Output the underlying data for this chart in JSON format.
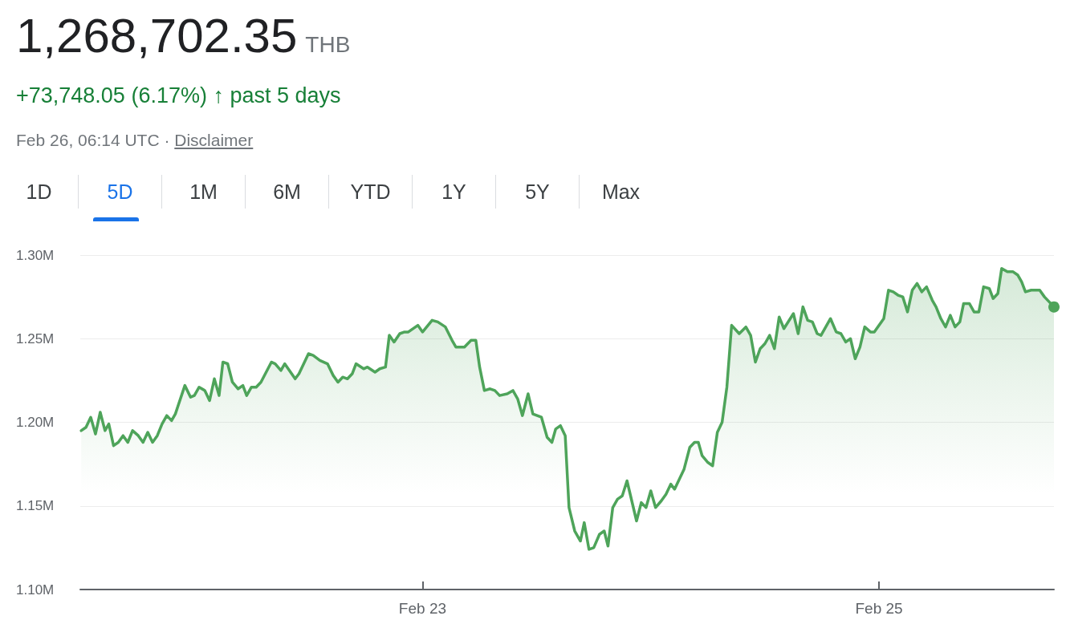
{
  "chart_data": {
    "type": "area",
    "title": "1,268,702.35 THB",
    "subtitle": "+73,748.05 (6.17%) ↑ past 5 days",
    "annotations": [
      "Feb 26, 06:14 UTC ·",
      "Disclaimer",
      "1D",
      "5D",
      "1M",
      "6M",
      "YTD",
      "1Y",
      "5Y",
      "Max"
    ],
    "x": [
      "--02-21T12:06",
      "--02-21T12:36",
      "--02-21T13:06",
      "--02-21T13:36",
      "--02-21T14:06",
      "--02-21T14:36",
      "--02-21T15:00",
      "--02-21T15:30",
      "--02-21T16:00",
      "--02-21T16:30",
      "--02-21T17:00",
      "--02-21T17:30",
      "--02-21T18:06",
      "--02-21T18:36",
      "--02-21T19:06",
      "--02-21T19:36",
      "--02-21T20:06",
      "--02-21T20:36",
      "--02-21T21:06",
      "--02-21T21:36",
      "--02-21T22:00",
      "--02-21T23:00",
      "--02-21T23:36",
      "--02-22T00:00",
      "--02-22T00:30",
      "--02-22T01:06",
      "--02-22T01:36",
      "--02-22T02:06",
      "--02-22T02:36",
      "--02-22T03:00",
      "--02-22T03:30",
      "--02-22T04:00",
      "--02-22T04:36",
      "--02-22T05:06",
      "--02-22T05:30",
      "--02-22T06:00",
      "--02-22T06:30",
      "--02-22T07:00",
      "--02-22T08:06",
      "--02-22T08:30",
      "--02-22T09:06",
      "--02-22T09:30",
      "--02-22T10:36",
      "--02-22T11:00",
      "--02-22T12:00",
      "--02-22T12:30",
      "--02-22T13:12",
      "--02-22T14:00",
      "--02-22T14:36",
      "--02-22T15:06",
      "--02-22T15:36",
      "--02-22T16:06",
      "--02-22T16:36",
      "--02-22T17:00",
      "--02-22T17:48",
      "--02-22T18:12",
      "--02-22T19:00",
      "--02-22T19:30",
      "--02-22T20:06",
      "--02-22T20:30",
      "--02-22T21:00",
      "--02-22T21:36",
      "--02-22T22:06",
      "--02-22T22:30",
      "--02-22T23:30",
      "--02-23T00:00",
      "--02-23T01:00",
      "--02-23T01:36",
      "--02-23T02:24",
      "--02-23T03:06",
      "--02-23T03:30",
      "--02-23T04:24",
      "--02-23T05:06",
      "--02-23T05:36",
      "--02-23T06:00",
      "--02-23T06:30",
      "--02-23T07:06",
      "--02-23T07:36",
      "--02-23T08:06",
      "--02-23T08:54",
      "--02-23T09:30",
      "--02-23T10:00",
      "--02-23T10:30",
      "--02-23T11:06",
      "--02-23T11:36",
      "--02-23T12:30",
      "--02-23T13:06",
      "--02-23T13:36",
      "--02-23T14:00",
      "--02-23T14:30",
      "--02-23T15:00",
      "--02-23T15:24",
      "--02-23T16:00",
      "--02-23T16:36",
      "--02-23T17:00",
      "--02-23T17:30",
      "--02-23T18:00",
      "--02-23T18:36",
      "--02-23T19:06",
      "--02-23T19:30",
      "--02-23T20:00",
      "--02-23T20:30",
      "--02-23T21:00",
      "--02-23T21:30",
      "--02-23T22:30",
      "--02-23T23:00",
      "--02-23T23:30",
      "--02-24T00:00",
      "--02-24T00:30",
      "--02-24T01:06",
      "--02-24T01:36",
      "--02-24T02:06",
      "--02-24T02:30",
      "--02-24T03:30",
      "--02-24T04:06",
      "--02-24T04:36",
      "--02-24T05:00",
      "--02-24T05:24",
      "--02-24T06:00",
      "--02-24T06:30",
      "--02-24T07:00",
      "--02-24T07:30",
      "--02-24T08:00",
      "--02-24T08:30",
      "--02-24T09:18",
      "--02-24T10:00",
      "--02-24T10:30",
      "--02-24T11:00",
      "--02-24T11:30",
      "--02-24T12:00",
      "--02-24T12:30",
      "--02-24T13:00",
      "--02-24T13:30",
      "--02-24T14:00",
      "--02-24T15:00",
      "--02-24T15:30",
      "--02-24T16:00",
      "--02-24T16:30",
      "--02-24T17:00",
      "--02-24T17:30",
      "--02-24T17:54",
      "--02-24T18:54",
      "--02-24T19:30",
      "--02-24T20:00",
      "--02-24T20:30",
      "--02-24T21:00",
      "--02-24T21:30",
      "--02-24T22:00",
      "--02-24T22:30",
      "--02-24T23:06",
      "--02-24T23:30",
      "--02-25T00:30",
      "--02-25T01:00",
      "--02-25T01:30",
      "--02-25T02:00",
      "--02-25T02:30",
      "--02-25T03:00",
      "--02-25T03:30",
      "--02-25T04:00",
      "--02-25T04:30",
      "--02-25T05:00",
      "--02-25T05:36",
      "--02-25T06:00",
      "--02-25T06:30",
      "--02-25T07:00",
      "--02-25T07:30",
      "--02-25T08:00",
      "--02-25T08:30",
      "--02-25T08:54",
      "--02-25T09:30",
      "--02-25T10:00",
      "--02-25T10:30",
      "--02-25T11:00",
      "--02-25T11:36",
      "--02-25T12:00",
      "--02-25T12:30",
      "--02-25T12:54",
      "--02-25T13:30",
      "--02-25T14:06",
      "--02-25T14:36",
      "--02-25T15:00",
      "--02-25T15:24",
      "--02-25T16:00",
      "--02-25T16:54",
      "--02-25T17:24",
      "--02-25T18:24"
    ],
    "series": [
      {
        "color": "#4ea45a",
        "values": [
          1.195,
          1.197,
          1.203,
          1.193,
          1.206,
          1.195,
          1.199,
          1.186,
          1.188,
          1.192,
          1.188,
          1.195,
          1.192,
          1.188,
          1.194,
          1.188,
          1.192,
          1.199,
          1.204,
          1.201,
          1.205,
          1.222,
          1.215,
          1.216,
          1.221,
          1.219,
          1.213,
          1.226,
          1.216,
          1.236,
          1.235,
          1.224,
          1.22,
          1.222,
          1.216,
          1.221,
          1.221,
          1.224,
          1.236,
          1.235,
          1.231,
          1.235,
          1.226,
          1.229,
          1.241,
          1.24,
          1.237,
          1.235,
          1.228,
          1.224,
          1.227,
          1.226,
          1.229,
          1.235,
          1.232,
          1.233,
          1.23,
          1.232,
          1.233,
          1.252,
          1.248,
          1.253,
          1.254,
          1.254,
          1.258,
          1.254,
          1.261,
          1.26,
          1.257,
          1.249,
          1.245,
          1.245,
          1.249,
          1.249,
          1.233,
          1.219,
          1.22,
          1.219,
          1.216,
          1.217,
          1.219,
          1.214,
          1.204,
          1.217,
          1.205,
          1.203,
          1.191,
          1.188,
          1.196,
          1.198,
          1.192,
          1.149,
          1.135,
          1.129,
          1.14,
          1.124,
          1.125,
          1.133,
          1.135,
          1.126,
          1.149,
          1.154,
          1.156,
          1.165,
          1.141,
          1.152,
          1.149,
          1.159,
          1.149,
          1.153,
          1.157,
          1.163,
          1.16,
          1.172,
          1.185,
          1.188,
          1.188,
          1.18,
          1.176,
          1.174,
          1.194,
          1.2,
          1.221,
          1.258,
          1.253,
          1.257,
          1.252,
          1.236,
          1.244,
          1.247,
          1.252,
          1.244,
          1.263,
          1.256,
          1.265,
          1.253,
          1.269,
          1.261,
          1.26,
          1.253,
          1.252,
          1.262,
          1.254,
          1.253,
          1.248,
          1.25,
          1.238,
          1.245,
          1.257,
          1.254,
          1.254,
          1.262,
          1.279,
          1.278,
          1.276,
          1.275,
          1.266,
          1.279,
          1.283,
          1.278,
          1.281,
          1.273,
          1.269,
          1.262,
          1.257,
          1.264,
          1.257,
          1.26,
          1.271,
          1.271,
          1.266,
          1.266,
          1.281,
          1.28,
          1.274,
          1.277,
          1.292,
          1.29,
          1.29,
          1.288,
          1.284,
          1.278,
          1.279,
          1.279,
          1.275,
          1.269
        ]
      }
    ],
    "xlim": [
      "--02-21T12:00",
      "--02-25T18:24"
    ],
    "xticks": [
      {
        "value": "--02-23",
        "label": "Feb 23"
      },
      {
        "value": "--02-25",
        "label": "Feb 25"
      }
    ],
    "ylim": [
      1.1,
      1.3
    ],
    "yticks": [
      {
        "value": 1.1,
        "label": "1.10M"
      },
      {
        "value": 1.15,
        "label": "1.15M"
      },
      {
        "value": 1.2,
        "label": "1.20M"
      },
      {
        "value": 1.25,
        "label": "1.25M"
      },
      {
        "value": 1.3,
        "label": "1.30M"
      }
    ],
    "grid": "y",
    "marker": "none",
    "line_style": "solid"
  }
}
